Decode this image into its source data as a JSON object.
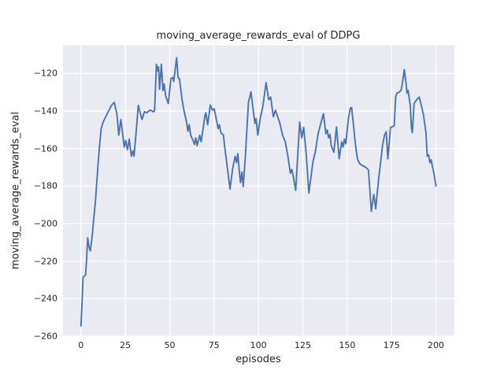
{
  "chart_data": {
    "type": "line",
    "title": "moving_average_rewards_eval of DDPG",
    "xlabel": "episodes",
    "ylabel": "moving_average_rewards_eval",
    "xlim": [
      -10.1,
      210.4
    ],
    "ylim": [
      -260.2,
      -105.0
    ],
    "grid": true,
    "legend_position": "none",
    "x_tick_values": [
      0,
      25,
      50,
      75,
      100,
      125,
      150,
      175,
      200
    ],
    "x_tick_labels": [
      "0",
      "25",
      "50",
      "75",
      "100",
      "125",
      "150",
      "175",
      "200"
    ],
    "y_tick_values": [
      -120,
      -140,
      -160,
      -180,
      -200,
      -220,
      -240,
      -260
    ],
    "y_tick_labels": [
      "−120",
      "−140",
      "−160",
      "−180",
      "−200",
      "−220",
      "−240",
      "−260"
    ],
    "style": {
      "figure_background": "#FFFFFF",
      "axes_background": "#EAEAF2",
      "grid_color": "#FFFFFF",
      "text_color": "#262626",
      "line_color": "#4C72B0",
      "line_width": 1.9
    },
    "series": [
      {
        "name": "moving_average_rewards_eval",
        "color": "#4C72B0",
        "points": [
          [
            0,
            -254.5
          ],
          [
            0.7,
            -241
          ],
          [
            1.2,
            -228.5
          ],
          [
            2.6,
            -227.5
          ],
          [
            3.2,
            -219
          ],
          [
            3.8,
            -207.5
          ],
          [
            4.6,
            -212.5
          ],
          [
            5.3,
            -214.5
          ],
          [
            6.4,
            -206
          ],
          [
            7.1,
            -198.4
          ],
          [
            8.2,
            -188
          ],
          [
            9.6,
            -169
          ],
          [
            10.5,
            -158.5
          ],
          [
            11.4,
            -149.4
          ],
          [
            12.5,
            -146
          ],
          [
            13.6,
            -143.8
          ],
          [
            15.8,
            -139.6
          ],
          [
            17.2,
            -137
          ],
          [
            18.8,
            -135.4
          ],
          [
            20.3,
            -141.7
          ],
          [
            21.3,
            -152.9
          ],
          [
            22.5,
            -144.5
          ],
          [
            24.4,
            -159.2
          ],
          [
            25.2,
            -155.7
          ],
          [
            26.2,
            -160.6
          ],
          [
            27.2,
            -155
          ],
          [
            28.4,
            -164.1
          ],
          [
            29.2,
            -161.3
          ],
          [
            29.9,
            -164.1
          ],
          [
            31.4,
            -148
          ],
          [
            32.3,
            -137
          ],
          [
            34.4,
            -144.5
          ],
          [
            35.8,
            -140.3
          ],
          [
            37,
            -141
          ],
          [
            39,
            -139.5
          ],
          [
            41,
            -140.5
          ],
          [
            41.5,
            -139.6
          ],
          [
            42.5,
            -115.1
          ],
          [
            43.2,
            -118.6
          ],
          [
            43.7,
            -116.5
          ],
          [
            44.3,
            -128.4
          ],
          [
            45.3,
            -115.1
          ],
          [
            46.2,
            -129.1
          ],
          [
            46.9,
            -125.6
          ],
          [
            47.7,
            -131.9
          ],
          [
            49.2,
            -136.1
          ],
          [
            50.7,
            -122.8
          ],
          [
            51.8,
            -122.1
          ],
          [
            52.3,
            -124.2
          ],
          [
            53.9,
            -111.6
          ],
          [
            54.7,
            -122.1
          ],
          [
            55.5,
            -123
          ],
          [
            57,
            -134
          ],
          [
            58,
            -139.6
          ],
          [
            59.5,
            -145.9
          ],
          [
            60.3,
            -150.8
          ],
          [
            61,
            -147.3
          ],
          [
            61.8,
            -152.9
          ],
          [
            63.2,
            -155.7
          ],
          [
            64,
            -157.8
          ],
          [
            64.7,
            -154.3
          ],
          [
            65.4,
            -158.5
          ],
          [
            66.9,
            -152.9
          ],
          [
            67.7,
            -156.4
          ],
          [
            68.4,
            -152.2
          ],
          [
            69.9,
            -142.4
          ],
          [
            70.4,
            -141
          ],
          [
            71.4,
            -147.3
          ],
          [
            72.9,
            -136.8
          ],
          [
            74,
            -139.5
          ],
          [
            75.1,
            -138.9
          ],
          [
            76.6,
            -145.9
          ],
          [
            77.3,
            -149.4
          ],
          [
            78,
            -147.3
          ],
          [
            78.8,
            -151.5
          ],
          [
            80.3,
            -152.9
          ],
          [
            81,
            -159.2
          ],
          [
            81.8,
            -164.8
          ],
          [
            84,
            -181.6
          ],
          [
            85.5,
            -170.4
          ],
          [
            86.9,
            -164.1
          ],
          [
            87.7,
            -167.6
          ],
          [
            88.4,
            -162.7
          ],
          [
            89.2,
            -171.8
          ],
          [
            89.9,
            -178.1
          ],
          [
            90.7,
            -172.5
          ],
          [
            91.4,
            -180.2
          ],
          [
            92.5,
            -166
          ],
          [
            93.5,
            -150
          ],
          [
            94.4,
            -135.4
          ],
          [
            95.8,
            -129.8
          ],
          [
            97.3,
            -141.7
          ],
          [
            98,
            -146.6
          ],
          [
            98.7,
            -144
          ],
          [
            99.6,
            -152.9
          ],
          [
            101,
            -144
          ],
          [
            102.5,
            -137.5
          ],
          [
            104.3,
            -124.9
          ],
          [
            105.8,
            -134
          ],
          [
            106.9,
            -132.6
          ],
          [
            108.4,
            -143.1
          ],
          [
            109.6,
            -139.6
          ],
          [
            112.1,
            -146.6
          ],
          [
            113.6,
            -152.9
          ],
          [
            115.1,
            -156.4
          ],
          [
            116.6,
            -164.1
          ],
          [
            118,
            -173.2
          ],
          [
            118.8,
            -171.1
          ],
          [
            119.6,
            -174.6
          ],
          [
            121,
            -182.3
          ],
          [
            123.2,
            -145.9
          ],
          [
            124.4,
            -154.3
          ],
          [
            125.5,
            -148.7
          ],
          [
            126.9,
            -162.7
          ],
          [
            128.4,
            -183.7
          ],
          [
            130.7,
            -166.9
          ],
          [
            132,
            -162
          ],
          [
            133.6,
            -152.2
          ],
          [
            136.6,
            -141.4
          ],
          [
            138,
            -152.2
          ],
          [
            138.8,
            -150.1
          ],
          [
            139.5,
            -154.3
          ],
          [
            140.3,
            -152.5
          ],
          [
            141,
            -158.5
          ],
          [
            142.5,
            -162
          ],
          [
            144,
            -148.5
          ],
          [
            145.5,
            -165.5
          ],
          [
            146.9,
            -156.4
          ],
          [
            147.7,
            -159.2
          ],
          [
            148.4,
            -155
          ],
          [
            149.2,
            -157.5
          ],
          [
            150.7,
            -143.8
          ],
          [
            151.8,
            -138.5
          ],
          [
            152.5,
            -138.2
          ],
          [
            153.6,
            -148
          ],
          [
            154.3,
            -155
          ],
          [
            155.1,
            -161.3
          ],
          [
            155.8,
            -165.5
          ],
          [
            157,
            -168
          ],
          [
            158.5,
            -169
          ],
          [
            160.5,
            -170
          ],
          [
            162,
            -171.5
          ],
          [
            163.6,
            -193.5
          ],
          [
            165,
            -184.4
          ],
          [
            166.1,
            -192.1
          ],
          [
            167,
            -183
          ],
          [
            168,
            -174
          ],
          [
            169,
            -166
          ],
          [
            170,
            -158
          ],
          [
            171,
            -153
          ],
          [
            172,
            -151
          ],
          [
            172.9,
            -165.5
          ],
          [
            174.4,
            -148.7
          ],
          [
            176.5,
            -148
          ],
          [
            177.3,
            -132.6
          ],
          [
            178,
            -130.5
          ],
          [
            179.2,
            -130
          ],
          [
            180.3,
            -129
          ],
          [
            181,
            -126
          ],
          [
            182.2,
            -117.9
          ],
          [
            183.2,
            -125.6
          ],
          [
            183.7,
            -130.5
          ],
          [
            184.3,
            -129
          ],
          [
            185.5,
            -136.8
          ],
          [
            186.2,
            -149.4
          ],
          [
            186.7,
            -151.5
          ],
          [
            187.7,
            -136.1
          ],
          [
            189.1,
            -134
          ],
          [
            190.6,
            -132.6
          ],
          [
            192.9,
            -141.7
          ],
          [
            194.4,
            -151.5
          ],
          [
            195.1,
            -164.1
          ],
          [
            195.9,
            -163.4
          ],
          [
            196.6,
            -167.6
          ],
          [
            197.3,
            -166
          ],
          [
            198,
            -169.7
          ],
          [
            199,
            -174
          ],
          [
            200,
            -180
          ]
        ]
      }
    ]
  }
}
